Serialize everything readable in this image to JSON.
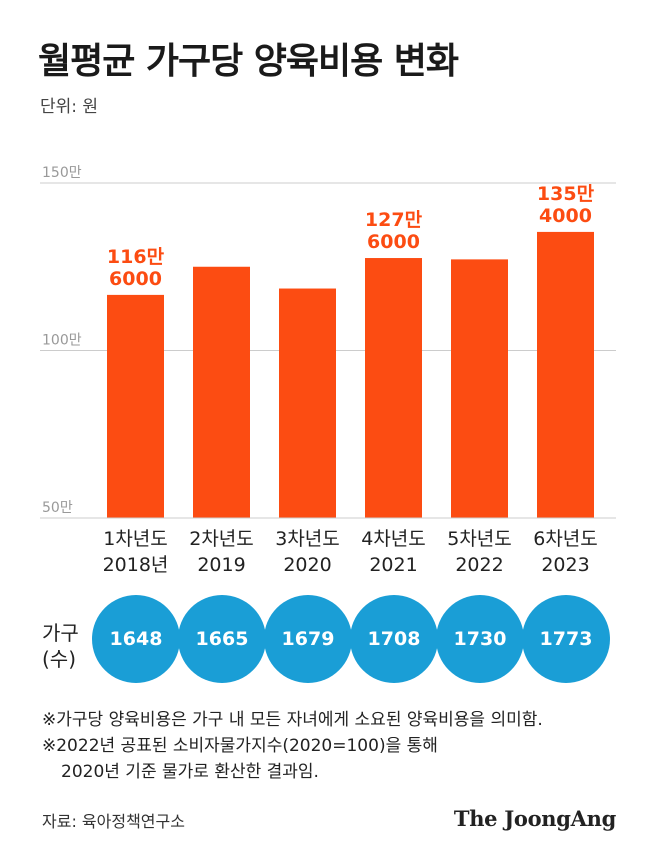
{
  "title": "월평균 가구당 양육비용 변화",
  "unit": "단위: 원",
  "colors": {
    "bar": "#fc4c12",
    "circle": "#1a9ed6",
    "grid": "#cccccc",
    "bar_label": "#fc4c12"
  },
  "chart_data": {
    "type": "bar",
    "categories": [
      "1차년도\n2018년",
      "2차년도\n2019",
      "3차년도\n2020",
      "4차년도\n2021",
      "5차년도\n2022",
      "6차년도\n2023"
    ],
    "values": [
      1166000,
      1250000,
      1185000,
      1276000,
      1272000,
      1354000
    ],
    "value_labels": [
      "116만\n6000",
      "",
      "",
      "127만\n6000",
      "",
      "135만\n4000"
    ],
    "yticks": [
      {
        "value": 1500000,
        "label": "150만"
      },
      {
        "value": 1000000,
        "label": "100만"
      },
      {
        "value": 500000,
        "label": "50만"
      }
    ],
    "ylim": [
      500000,
      1500000
    ],
    "grid": true
  },
  "households": {
    "label": "가구\n(수)",
    "values": [
      "1648",
      "1665",
      "1679",
      "1708",
      "1730",
      "1773"
    ]
  },
  "notes": [
    "※가구당 양육비용은 가구 내 모든 자녀에게 소요된 양육비용을 의미함.",
    "※2022년 공표된 소비자물가지수(2020=100)을 통해",
    "2020년 기준 물가로 환산한 결과임."
  ],
  "source": "자료: 육아정책연구소",
  "brand": "The JoongAng"
}
